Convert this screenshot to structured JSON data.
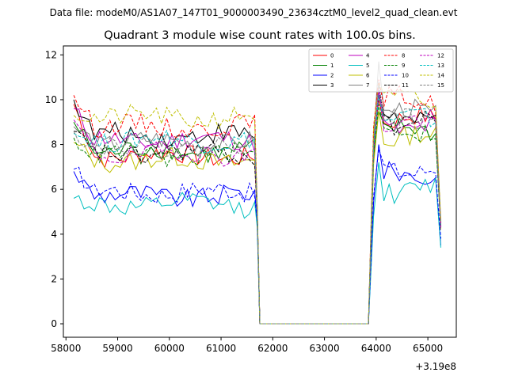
{
  "figure": {
    "suptitle": "Data file: modeM0/AS1A07_147T01_9000003490_23634cztM0_level2_quad_clean.evt"
  },
  "chart_data": {
    "type": "line",
    "title": "Quadrant 3 module wise count rates with 100.0s bins.",
    "xlabel": "",
    "ylabel": "",
    "x_offset_label": "+3.19e8",
    "xlim": [
      57950,
      65550
    ],
    "ylim": [
      -0.6,
      12.4
    ],
    "xticks": [
      58000,
      59000,
      60000,
      61000,
      62000,
      63000,
      64000,
      65000
    ],
    "xtick_labels": [
      "58000",
      "59000",
      "60000",
      "61000",
      "62000",
      "63000",
      "64000",
      "65000"
    ],
    "yticks": [
      0,
      2,
      4,
      6,
      8,
      10,
      12
    ],
    "ytick_labels": [
      "0",
      "2",
      "4",
      "6",
      "8",
      "10",
      "12"
    ],
    "grid": false,
    "legend_location": "upper right",
    "legend_columns": 4,
    "segments": [
      {
        "name": "before gap",
        "x_start": 58150,
        "x_end": 61650,
        "step": 100
      },
      {
        "name": "data gap",
        "x_start": 61750,
        "x_end": 63850,
        "step": 100,
        "value": 0
      },
      {
        "name": "after gap",
        "x_start": 63950,
        "x_end": 65250,
        "step": 100
      }
    ],
    "series": [
      {
        "name": "0",
        "color": "#ff0000",
        "dash": "solid",
        "pre_level": 7.5,
        "post_level": 9.1,
        "pre_first": 9.8,
        "post_peak": 10.0,
        "pre_drop_end": 5.0,
        "post_end": 4.3
      },
      {
        "name": "1",
        "color": "#008000",
        "dash": "solid",
        "pre_level": 7.7,
        "post_level": 8.6,
        "pre_first": 9.0,
        "post_peak": 9.5,
        "pre_drop_end": 5.0,
        "post_end": 4.3
      },
      {
        "name": "2",
        "color": "#0000ff",
        "dash": "solid",
        "pre_level": 5.7,
        "post_level": 6.6,
        "pre_first": 6.8,
        "post_peak": 8.0,
        "pre_drop_end": 4.5,
        "post_end": 3.5
      },
      {
        "name": "3",
        "color": "#000000",
        "dash": "solid",
        "pre_level": 8.4,
        "post_level": 9.2,
        "pre_first": 10.0,
        "post_peak": 10.2,
        "pre_drop_end": 5.2,
        "post_end": 4.4
      },
      {
        "name": "4",
        "color": "#bf00bf",
        "dash": "solid",
        "pre_level": 8.2,
        "post_level": 8.8,
        "pre_first": 9.6,
        "post_peak": 10.4,
        "pre_drop_end": 5.1,
        "post_end": 4.3
      },
      {
        "name": "5",
        "color": "#00bfbf",
        "dash": "solid",
        "pre_level": 5.3,
        "post_level": 6.0,
        "pre_first": 5.6,
        "post_peak": 7.2,
        "pre_drop_end": 4.3,
        "post_end": 3.4
      },
      {
        "name": "6",
        "color": "#bfbf00",
        "dash": "solid",
        "pre_level": 7.3,
        "post_level": 8.3,
        "pre_first": 8.1,
        "post_peak": 9.5,
        "pre_drop_end": 4.9,
        "post_end": 4.2
      },
      {
        "name": "7",
        "color": "#808080",
        "dash": "solid",
        "pre_level": 8.1,
        "post_level": 9.4,
        "pre_first": 8.8,
        "post_peak": 11.7,
        "pre_drop_end": 5.1,
        "post_end": 4.5
      },
      {
        "name": "8",
        "color": "#ff0000",
        "dash": "dashed",
        "pre_level": 8.8,
        "post_level": 10.0,
        "pre_first": 10.2,
        "post_peak": 10.9,
        "pre_drop_end": 5.2,
        "post_end": 4.5
      },
      {
        "name": "9",
        "color": "#008000",
        "dash": "dashed",
        "pre_level": 7.5,
        "post_level": 8.7,
        "pre_first": 8.3,
        "post_peak": 9.8,
        "pre_drop_end": 5.0,
        "post_end": 4.3
      },
      {
        "name": "10",
        "color": "#0000ff",
        "dash": "dashed",
        "pre_level": 5.9,
        "post_level": 6.9,
        "pre_first": 6.9,
        "post_peak": 7.8,
        "pre_drop_end": 4.6,
        "post_end": 3.8
      },
      {
        "name": "11",
        "color": "#000000",
        "dash": "dashed",
        "pre_level": 7.6,
        "post_level": 9.0,
        "pre_first": 8.6,
        "post_peak": 10.6,
        "pre_drop_end": 5.0,
        "post_end": 4.3
      },
      {
        "name": "12",
        "color": "#bf00bf",
        "dash": "dashed",
        "pre_level": 7.6,
        "post_level": 9.0,
        "pre_first": 9.1,
        "post_peak": 10.5,
        "pre_drop_end": 5.0,
        "post_end": 4.3
      },
      {
        "name": "13",
        "color": "#00bfbf",
        "dash": "dashed",
        "pre_level": 8.2,
        "post_level": 9.1,
        "pre_first": 8.5,
        "post_peak": 10.2,
        "pre_drop_end": 5.1,
        "post_end": 4.4
      },
      {
        "name": "14",
        "color": "#bfbf00",
        "dash": "dashed",
        "pre_level": 9.2,
        "post_level": 9.9,
        "pre_first": 9.3,
        "post_peak": 10.7,
        "pre_drop_end": 5.3,
        "post_end": 4.6
      },
      {
        "name": "15",
        "color": "#808080",
        "dash": "dashed",
        "pre_level": 7.9,
        "post_level": 9.2,
        "pre_first": 8.6,
        "post_peak": 10.8,
        "pre_drop_end": 5.1,
        "post_end": 4.4
      }
    ]
  }
}
